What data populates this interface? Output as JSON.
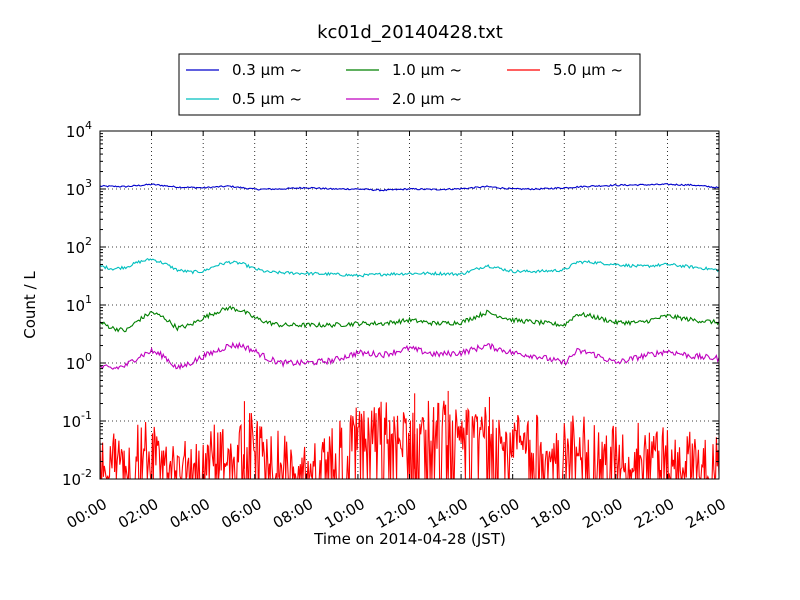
{
  "chart_data": {
    "type": "line",
    "title": "kc01d_20140428.txt",
    "xlabel": "Time on 2014-04-28 (JST)",
    "ylabel": "Count / L",
    "y_scale": "log",
    "grid": true,
    "legend_position": "top-center",
    "xlim_hours": [
      0,
      24
    ],
    "ylim": [
      0.01,
      10000
    ],
    "x_tick_labels": [
      "00:00",
      "02:00",
      "04:00",
      "06:00",
      "08:00",
      "10:00",
      "12:00",
      "14:00",
      "16:00",
      "18:00",
      "20:00",
      "22:00",
      "24:00"
    ],
    "y_tick_labels": [
      {
        "base": "10",
        "exp": "-2"
      },
      {
        "base": "10",
        "exp": "-1"
      },
      {
        "base": "10",
        "exp": "0"
      },
      {
        "base": "10",
        "exp": "1"
      },
      {
        "base": "10",
        "exp": "2"
      },
      {
        "base": "10",
        "exp": "3"
      },
      {
        "base": "10",
        "exp": "4"
      }
    ],
    "series": [
      {
        "name": "0.3 μm ~",
        "color": "#0000cc",
        "x_hours": [
          0,
          1,
          2,
          3,
          4,
          5,
          6,
          7,
          8,
          9,
          10,
          11,
          12,
          13,
          14,
          15,
          16,
          17,
          18,
          19,
          20,
          21,
          22,
          23,
          24
        ],
        "values": [
          1120,
          1100,
          1200,
          1080,
          1050,
          1120,
          990,
          1000,
          1060,
          1000,
          1000,
          950,
          1000,
          980,
          1010,
          1100,
          1000,
          1000,
          1050,
          1120,
          1160,
          1180,
          1200,
          1170,
          1050
        ]
      },
      {
        "name": "0.5 μm ~",
        "color": "#00bfbf",
        "x_hours": [
          0,
          0.5,
          1,
          1.5,
          2,
          2.5,
          3,
          3.5,
          4,
          4.5,
          5,
          5.5,
          6,
          6.5,
          7,
          8,
          9,
          10,
          11,
          12,
          13,
          14,
          15,
          16,
          17,
          18,
          18.5,
          19,
          20,
          21,
          22,
          23,
          24
        ],
        "values": [
          47,
          42,
          45,
          55,
          62,
          52,
          40,
          37,
          38,
          48,
          55,
          52,
          42,
          37,
          36,
          35,
          34,
          32,
          34,
          35,
          35,
          34,
          48,
          38,
          38,
          40,
          55,
          55,
          50,
          46,
          50,
          45,
          40
        ]
      },
      {
        "name": "1.0 μm ~",
        "color": "#008000",
        "x_hours": [
          0,
          0.5,
          1,
          1.5,
          2,
          2.5,
          3,
          3.5,
          4,
          4.5,
          5,
          5.5,
          6,
          6.5,
          7,
          8,
          9,
          10,
          11,
          12,
          13,
          14,
          15,
          16,
          17,
          18,
          18.5,
          19,
          20,
          21,
          22,
          23,
          24
        ],
        "values": [
          5,
          4,
          3.6,
          5.5,
          7.5,
          6,
          4,
          4.5,
          6,
          7.5,
          9,
          8,
          6,
          5,
          4.5,
          4.5,
          4.5,
          4.8,
          4.8,
          5.5,
          4.8,
          5,
          7.5,
          5.5,
          5,
          4.5,
          7,
          6.5,
          5,
          5,
          6.5,
          5.5,
          5
        ]
      },
      {
        "name": "2.0 μm ~",
        "color": "#bf00bf",
        "x_hours": [
          0,
          0.5,
          1,
          1.5,
          2,
          2.5,
          3,
          3.5,
          4,
          4.5,
          5,
          5.5,
          6,
          6.5,
          7,
          8,
          9,
          10,
          11,
          12,
          13,
          14,
          15,
          16,
          17,
          18,
          18.5,
          19,
          20,
          21,
          22,
          23,
          24
        ],
        "values": [
          0.85,
          0.8,
          0.9,
          1.3,
          1.6,
          1.3,
          0.8,
          1.0,
          1.3,
          1.6,
          2.0,
          2.0,
          1.6,
          1.2,
          1.0,
          1.0,
          1.1,
          1.5,
          1.4,
          1.8,
          1.4,
          1.5,
          2.0,
          1.5,
          1.3,
          1.0,
          1.6,
          1.5,
          1.0,
          1.3,
          1.6,
          1.3,
          1.2
        ]
      },
      {
        "name": "5.0 μm ~",
        "color": "#ff0000",
        "x_hours": [
          0,
          0.5,
          1,
          1.5,
          2,
          2.5,
          3,
          3.5,
          4,
          4.5,
          5,
          5.5,
          6,
          6.5,
          7,
          7.5,
          8,
          8.5,
          9,
          9.5,
          10,
          10.5,
          11,
          11.5,
          12,
          12.5,
          13,
          13.5,
          14,
          14.5,
          15,
          15.5,
          16,
          16.5,
          17,
          17.5,
          18,
          18.5,
          19,
          19.5,
          20,
          20.5,
          21,
          21.5,
          22,
          22.5,
          23,
          23.5,
          24
        ],
        "values": [
          0.02,
          0.03,
          0.015,
          0.05,
          0.03,
          0.04,
          0.015,
          0.02,
          0.02,
          0.04,
          0.03,
          0.05,
          0.06,
          0.02,
          0.03,
          0.015,
          0.02,
          0.015,
          0.03,
          0.05,
          0.08,
          0.06,
          0.1,
          0.05,
          0.07,
          0.12,
          0.08,
          0.1,
          0.07,
          0.09,
          0.1,
          0.08,
          0.05,
          0.06,
          0.05,
          0.02,
          0.04,
          0.06,
          0.05,
          0.03,
          0.04,
          0.02,
          0.05,
          0.04,
          0.03,
          0.02,
          0.03,
          0.02,
          0.025
        ]
      }
    ],
    "annotations": [
      {
        "x_hours": 5.6,
        "value": 0.22
      },
      {
        "x_hours": 12.2,
        "value": 0.3
      },
      {
        "x_hours": 13.5,
        "value": 0.33
      },
      {
        "x_hours": 15.1,
        "value": 0.26
      }
    ]
  }
}
